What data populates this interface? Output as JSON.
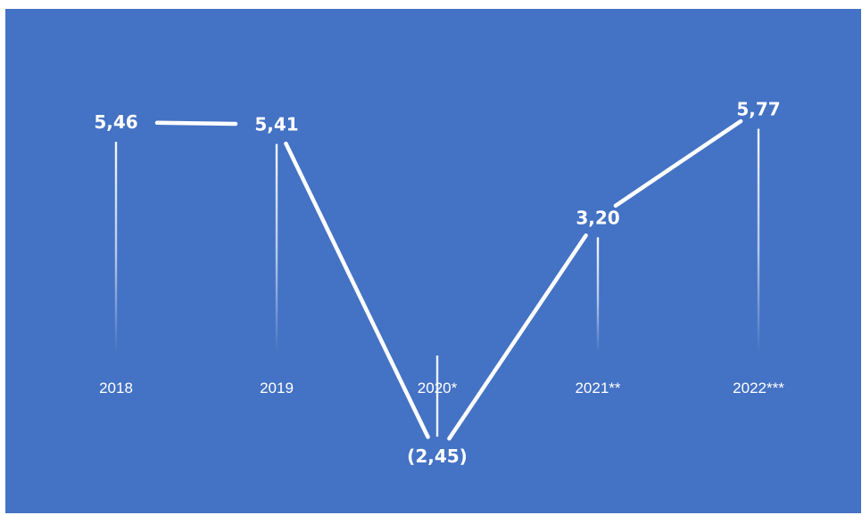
{
  "chart_data": {
    "type": "line",
    "categories": [
      "2018",
      "2019",
      "2020*",
      "2021**",
      "2022***"
    ],
    "series": [
      {
        "values": [
          5.46,
          5.41,
          -2.45,
          3.2,
          5.77
        ]
      }
    ],
    "value_labels": [
      "5,46",
      "5,41",
      "(2,45)",
      "3,20",
      "5,77"
    ],
    "title": "",
    "xlabel": "",
    "ylabel": "",
    "legend": "none",
    "grid": false,
    "drop_lines": true,
    "colors": {
      "background": "#4472c4",
      "line": "#ffffff",
      "text": "#ffffff"
    }
  }
}
